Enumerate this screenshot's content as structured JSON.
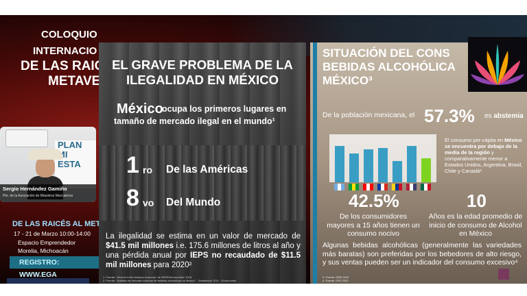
{
  "event": {
    "title_lines": [
      "COLOQUIO",
      "INTERNACIO",
      "DE LAS RAIC",
      "METAVE"
    ],
    "subtitle": "DE LAS RAICÉS AL META",
    "dates": "17 - 21 de Marzo 10:00-14:00",
    "venue": "Espacio Emprendedor",
    "city": "Morelia, Michoacán",
    "register": "REGISTRO: WWW.EGA"
  },
  "webcam": {
    "poster_text": "PLAN\nMI\nESTA",
    "speaker_name": "Sergio Hernández Gamiño",
    "speaker_role": "Pte. de la Asociación de Maestros Mezcaleros"
  },
  "slide1": {
    "title": "EL GRAVE PROBLEMA DE LA ILEGALIDAD EN MÉXICO",
    "country": "México",
    "intro_a": "ocupa los primeros lugares en",
    "intro_b": "tamaño de mercado ilegal en el mundo¹",
    "rank1_num": "1",
    "rank1_suffix": "ro",
    "rank1_label": "De las Américas",
    "rank2_num": "8",
    "rank2_suffix": "vo",
    "rank2_label": "Del Mundo",
    "body_1": "La ilegalidad se estima en un valor de mercado de ",
    "body_b1": "$41.5 mil millones",
    "body_2": " i.e. 175.6 millones de litros al año y una pérdida anual por ",
    "body_b2": "IEPS no recaudado de $11.5 mil millones",
    "body_3": " para 2020²",
    "footnote_1": "1. Fuente: \"Alcohol in the shadow economy\" de IWSR/Euromonitor, 2018",
    "footnote_2": "2. Fuente: \"Análisis del mercado informal de bebidas alcohólicas en México\" - Septiembre 2021 - Euromonitor"
  },
  "slide2": {
    "title_1": "SITUACIÓN DEL CONS",
    "title_2": "BEBIDAS ALCOHÓLICA",
    "title_3": "MÉXICO³",
    "poblacion": "De la población mexicana, el",
    "pct": "57.3%",
    "abstemia_pre": "es",
    "abstemia": "abstemia",
    "side_1": "El consumo per-cápita en ",
    "side_b": "México se encuentra por debajo de la media de la región",
    "side_2": " y comparativamente menor a Estados Unidos, Argentina, Brasil, Chile y Canadá³",
    "stat1": "42.5%",
    "stat1_desc": "De los consumidores mayores a 15 años tienen un consumo nocivo",
    "stat2": "10",
    "stat2_desc": "Años es la edad promedio de inicio de consumo de Alcohol en México",
    "body": "Algunas bebidas alcohólicas (generalmente las variedades más baratas) son preferidas por los bebedores de alto riesgo, y sus ventas pueden ser un indicador del consumo excesivo⁴",
    "footnote_1": "3. Fuente: OMS 2018",
    "footnote_2": "4. Fuente: OPS 2020"
  },
  "chart_data": {
    "type": "bar",
    "categories": [
      "Argentina",
      "Brasil",
      "Canadá",
      "Chile",
      "Colombia",
      "Estados Unidos",
      "México"
    ],
    "values": [
      9.8,
      7.8,
      8.9,
      9.3,
      5.8,
      9.8,
      6.5
    ],
    "bar_color": "#3a9ec4",
    "highlight_color": "#7ed321",
    "highlight_index": 6
  },
  "colors": {
    "accent_blue": "#1e7fa6",
    "highlight_green": "#7ed321"
  }
}
